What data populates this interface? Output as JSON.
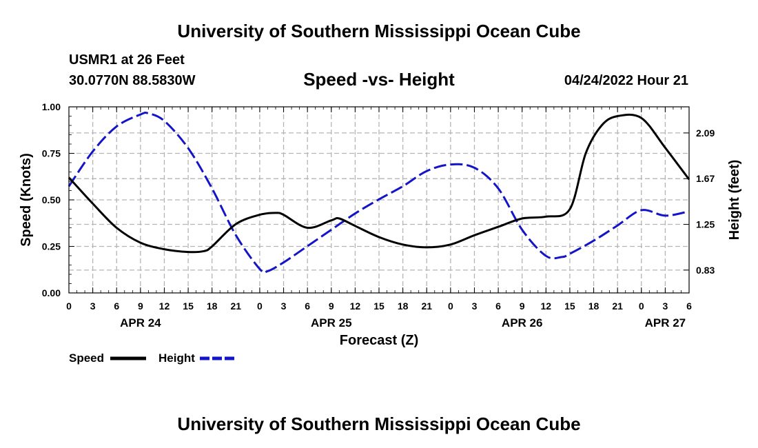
{
  "header": {
    "title": "University of Southern Mississippi Ocean Cube",
    "station": "USMR1 at 26 Feet",
    "coords": "30.0770N  88.5830W",
    "subtitle": "Speed -vs- Height",
    "datetime": "04/24/2022 Hour 21"
  },
  "footer": {
    "title": "University of Southern Mississippi Ocean Cube"
  },
  "colors": {
    "speed": "#000000",
    "height": "#1414c8",
    "grid": "#b4b4b4"
  },
  "chart_data": {
    "type": "line",
    "xlabel": "Forecast (Z)",
    "ylabel": "Speed (Knots)",
    "y2label": "Height (feet)",
    "x_tick_hours": [
      0,
      3,
      6,
      9,
      12,
      15,
      18,
      21,
      24,
      27,
      30,
      33,
      36,
      39,
      42,
      45,
      48,
      51,
      54,
      57,
      60,
      63,
      66,
      69,
      72,
      75,
      78
    ],
    "x_tick_labels": [
      "0",
      "3",
      "6",
      "9",
      "12",
      "15",
      "18",
      "21",
      "0",
      "3",
      "6",
      "9",
      "12",
      "15",
      "18",
      "21",
      "0",
      "3",
      "6",
      "9",
      "12",
      "15",
      "18",
      "21",
      "0",
      "3",
      "6"
    ],
    "date_labels": [
      {
        "hour": 9,
        "label": "APR 24"
      },
      {
        "hour": 33,
        "label": "APR 25"
      },
      {
        "hour": 57,
        "label": "APR 26"
      },
      {
        "hour": 75,
        "label": "APR 27"
      }
    ],
    "xlim": [
      0,
      78
    ],
    "ylim": [
      0,
      1
    ],
    "y_ticks": [
      "0.00",
      "0.25",
      "0.50",
      "0.75",
      "1.00"
    ],
    "y2lim": [
      0.62,
      2.33
    ],
    "y2_ticks": [
      "0.83",
      "1.25",
      "1.67",
      "2.09"
    ],
    "legend": {
      "speed": "Speed",
      "height": "Height"
    },
    "series": [
      {
        "name": "Speed",
        "x": [
          0,
          3,
          6,
          9,
          12,
          15,
          17,
          18,
          21,
          24,
          26,
          27,
          30,
          33,
          34,
          36,
          39,
          42,
          45,
          48,
          51,
          54,
          57,
          60,
          63,
          65,
          67,
          69,
          72,
          75,
          78
        ],
        "values": [
          0.62,
          0.48,
          0.35,
          0.27,
          0.235,
          0.22,
          0.225,
          0.25,
          0.37,
          0.42,
          0.43,
          0.42,
          0.35,
          0.39,
          0.4,
          0.36,
          0.3,
          0.26,
          0.245,
          0.26,
          0.31,
          0.355,
          0.4,
          0.41,
          0.45,
          0.75,
          0.9,
          0.95,
          0.94,
          0.78,
          0.61
        ]
      },
      {
        "name": "Height",
        "x": [
          0,
          3,
          6,
          9,
          10,
          12,
          15,
          18,
          21,
          24,
          25,
          27,
          30,
          33,
          36,
          39,
          42,
          45,
          48,
          51,
          54,
          57,
          60,
          62,
          63,
          66,
          69,
          72,
          75,
          78
        ],
        "values": [
          1.6,
          1.92,
          2.15,
          2.26,
          2.27,
          2.2,
          1.95,
          1.58,
          1.15,
          0.84,
          0.82,
          0.9,
          1.05,
          1.2,
          1.35,
          1.48,
          1.6,
          1.74,
          1.8,
          1.77,
          1.58,
          1.2,
          0.96,
          0.95,
          0.98,
          1.1,
          1.24,
          1.38,
          1.33,
          1.37
        ]
      }
    ]
  }
}
